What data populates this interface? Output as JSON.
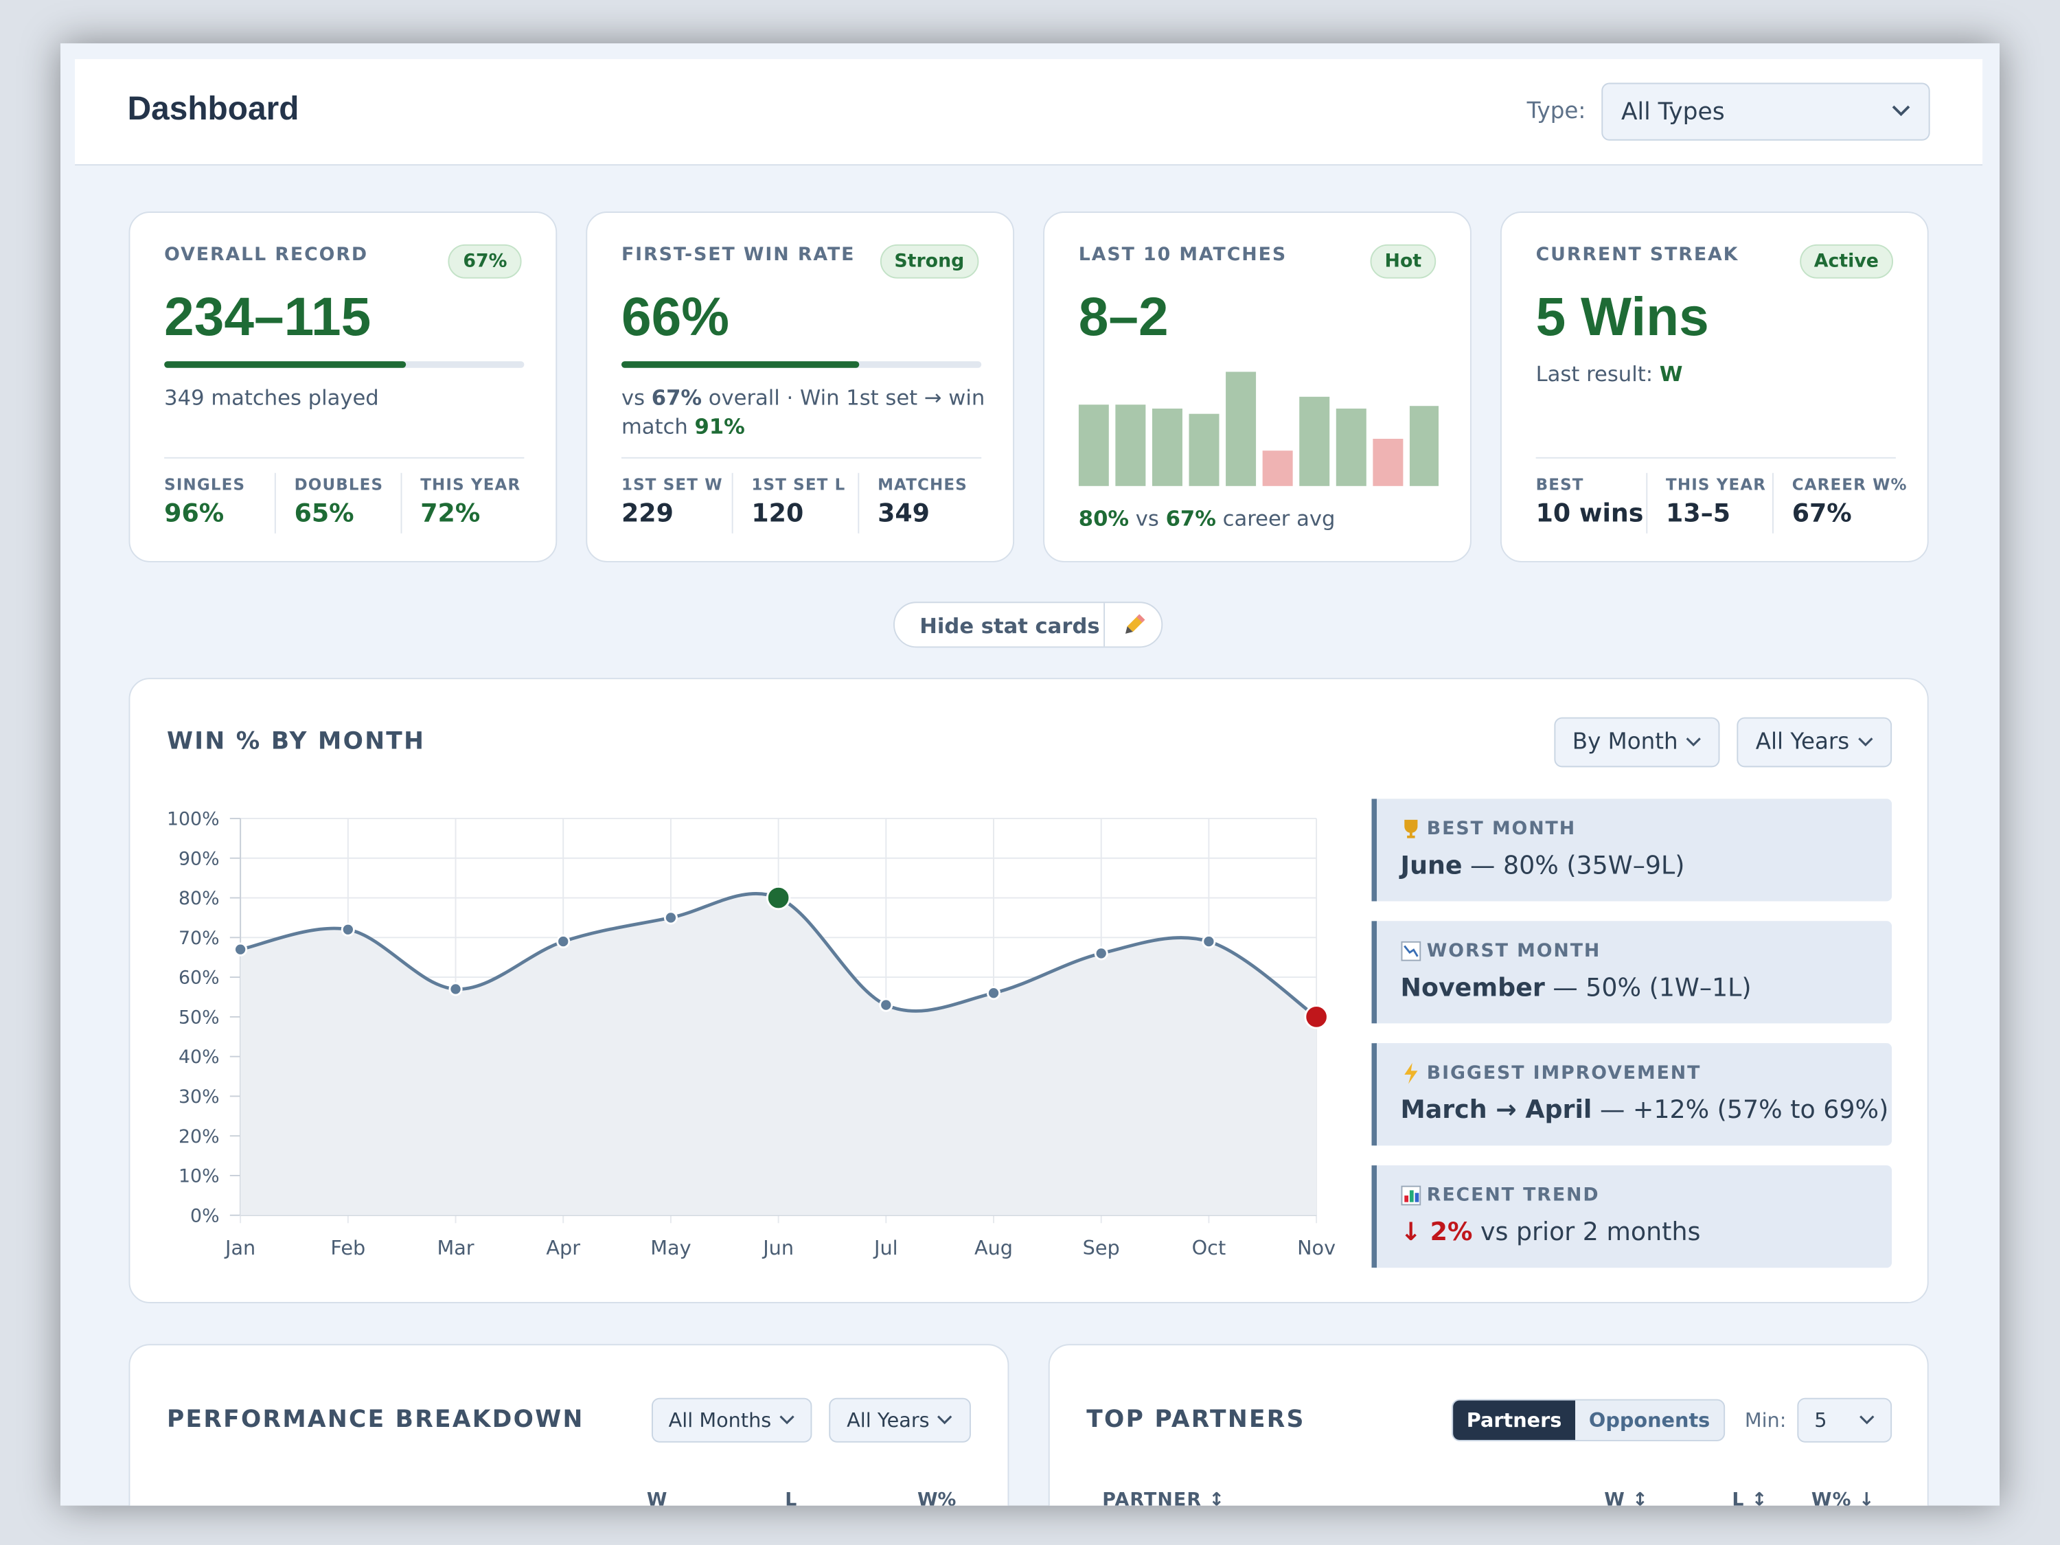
{
  "header": {
    "title": "Dashboard",
    "type_label": "Type:",
    "type_value": "All Types"
  },
  "stat_cards": [
    {
      "label": "OVERALL RECORD",
      "badge": "67%",
      "value": "234–115",
      "progress": 67,
      "note": [
        {
          "text": "349 matches played"
        }
      ],
      "stats": [
        {
          "label": "SINGLES",
          "value": "96%"
        },
        {
          "label": "DOUBLES",
          "value": "65%"
        },
        {
          "label": "THIS YEAR",
          "value": "72%"
        }
      ],
      "stats_color": "#1e6b35"
    },
    {
      "label": "FIRST-SET WIN RATE",
      "badge": "Strong",
      "value": "66%",
      "progress": 66,
      "note": [
        {
          "text": "vs "
        },
        {
          "text": "67%",
          "strong": true
        },
        {
          "text": " overall · Win 1st set → win match "
        },
        {
          "text": "91%",
          "strong": true,
          "color": "#1e6b35"
        }
      ],
      "stats": [
        {
          "label": "1ST SET W",
          "value": "229"
        },
        {
          "label": "1ST SET L",
          "value": "120"
        },
        {
          "label": "MATCHES",
          "value": "349"
        }
      ],
      "stats_color": "#1f2d3d"
    },
    {
      "label": "LAST 10 MATCHES",
      "badge": "Hot",
      "value": "8–2",
      "bars": [
        62,
        62,
        59,
        55,
        87,
        27,
        68,
        59,
        36,
        61
      ],
      "bar_colors": [
        "#a9c7ab",
        "#a9c7ab",
        "#a9c7ab",
        "#a9c7ab",
        "#a9c7ab",
        "#efb3b3",
        "#a9c7ab",
        "#a9c7ab",
        "#efb3b3",
        "#a9c7ab"
      ],
      "note": [
        {
          "text": "80%",
          "strong": true,
          "color": "#1e6b35"
        },
        {
          "text": " vs "
        },
        {
          "text": "67%",
          "strong": true,
          "color": "#1e6b35"
        },
        {
          "text": " career avg"
        }
      ]
    },
    {
      "label": "CURRENT STREAK",
      "badge": "Active",
      "value": "5 Wins",
      "note": [
        {
          "text": "Last result: "
        },
        {
          "text": "W",
          "strong": true,
          "color": "#1e6b35"
        }
      ],
      "stats": [
        {
          "label": "BEST",
          "value": "10 wins"
        },
        {
          "label": "THIS YEAR",
          "value": "13–5"
        },
        {
          "label": "CAREER W%",
          "value": "67%"
        }
      ],
      "stats_color": "#1f2d3d"
    }
  ],
  "toggle": {
    "label": "Hide stat cards"
  },
  "chart_panel": {
    "title": "WIN % BY MONTH",
    "controls": [
      "By Month",
      "All Years"
    ]
  },
  "chart_data": {
    "type": "line",
    "categories": [
      "Jan",
      "Feb",
      "Mar",
      "Apr",
      "May",
      "Jun",
      "Jul",
      "Aug",
      "Sep",
      "Oct",
      "Nov"
    ],
    "values": [
      67,
      72,
      57,
      69,
      75,
      80,
      53,
      56,
      66,
      69,
      50
    ],
    "color": "#5f7c99",
    "best_color": "#1e6b35",
    "worst_color": "#c0161b",
    "ylim": [
      0,
      100
    ],
    "yticks": [
      {
        "value": 0,
        "label": "0%"
      },
      {
        "value": 10,
        "label": "10%"
      },
      {
        "value": 20,
        "label": "20%"
      },
      {
        "value": 30,
        "label": "30%"
      },
      {
        "value": 40,
        "label": "40%"
      },
      {
        "value": 50,
        "label": "50%"
      },
      {
        "value": 60,
        "label": "60%"
      },
      {
        "value": 70,
        "label": "70%"
      },
      {
        "value": 80,
        "label": "80%"
      },
      {
        "value": 90,
        "label": "90%"
      },
      {
        "value": 100,
        "label": "100%"
      }
    ],
    "grid": true
  },
  "insights": [
    {
      "label": "BEST MONTH",
      "parts": [
        {
          "text": "June",
          "strong": true
        },
        {
          "text": " — 80% (35W–9L)"
        }
      ]
    },
    {
      "label": "WORST MONTH",
      "parts": [
        {
          "text": "November",
          "strong": true
        },
        {
          "text": " — 50% (1W–1L)"
        }
      ]
    },
    {
      "label": "BIGGEST IMPROVEMENT",
      "parts": [
        {
          "text": "March → April",
          "strong": true
        },
        {
          "text": " — +12% (57% to 69%)"
        }
      ]
    },
    {
      "label": "RECENT TREND",
      "parts": [
        {
          "text": "↓ 2%",
          "strong": true,
          "color": "#c0161b"
        },
        {
          "text": " vs prior 2 months"
        }
      ]
    }
  ],
  "performance": {
    "title": "PERFORMANCE BREAKDOWN",
    "controls": [
      "All Months",
      "All Years"
    ],
    "columns": [
      "W",
      "L",
      "W%"
    ]
  },
  "partners": {
    "title": "TOP PARTNERS",
    "tabs": [
      "Partners",
      "Opponents"
    ],
    "min_label": "Min:",
    "min_value": "5",
    "columns": [
      "PARTNER ↕",
      "W ↕",
      "L ↕",
      "W% ↓"
    ]
  }
}
